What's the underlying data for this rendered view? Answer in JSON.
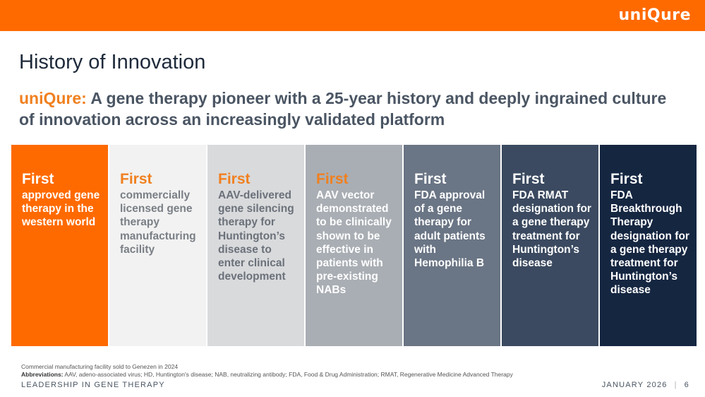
{
  "header": {
    "logo_text": "uniQure",
    "bar_color": "#ff6a00"
  },
  "title": "History of Innovation",
  "subtitle": {
    "brand": "uniQure:",
    "text": " A gene therapy pioneer with a 25-year history and deeply ingrained culture of innovation across an increasingly validated platform"
  },
  "cards": [
    {
      "heading": "First",
      "text": "approved gene therapy in the western world",
      "bg": "#ff6a00",
      "heading_color": "#ffffff",
      "text_color": "#ffffff"
    },
    {
      "heading": "First",
      "text": "commercially licensed gene therapy manufacturing facility",
      "bg": "#f2f2f2",
      "heading_color": "#f08020",
      "text_color": "#7a7f86"
    },
    {
      "heading": "First",
      "text": "AAV-delivered gene silencing therapy for Huntington’s disease to enter clinical development",
      "bg": "#d9dadc",
      "heading_color": "#f08020",
      "text_color": "#6b717a"
    },
    {
      "heading": "First",
      "text": "AAV vector demonstrated to be clinically shown to be effective in patients with pre-existing NABs",
      "bg": "#a9aeb4",
      "heading_color": "#f08020",
      "text_color": "#ffffff"
    },
    {
      "heading": "First",
      "text": "FDA approval of a gene therapy for adult patients with Hemophilia B",
      "bg": "#6a7585",
      "heading_color": "#ffffff",
      "text_color": "#ffffff"
    },
    {
      "heading": "First",
      "text": "FDA RMAT designation for a gene therapy treatment for Huntington’s disease",
      "bg": "#3b4a60",
      "heading_color": "#ffffff",
      "text_color": "#ffffff"
    },
    {
      "heading": "First",
      "text": "FDA Breakthrough Therapy designation for a gene therapy treatment for Huntington’s disease",
      "bg": "#152641",
      "heading_color": "#ffffff",
      "text_color": "#ffffff"
    }
  ],
  "footnotes": {
    "line1": "Commercial manufacturing facility sold to Genezen in 2024",
    "abbr_label": "Abbreviations:",
    "abbr_text": " AAV, adeno-associated virus; HD, Huntington's disease; NAB, neutralizing antibody; FDA, Food & Drug Administration; RMAT, Regenerative Medicine Advanced Therapy"
  },
  "footer": {
    "left": "LEADERSHIP IN GENE THERAPY",
    "date": "JANUARY 2026",
    "separator": "|",
    "page": "6"
  }
}
